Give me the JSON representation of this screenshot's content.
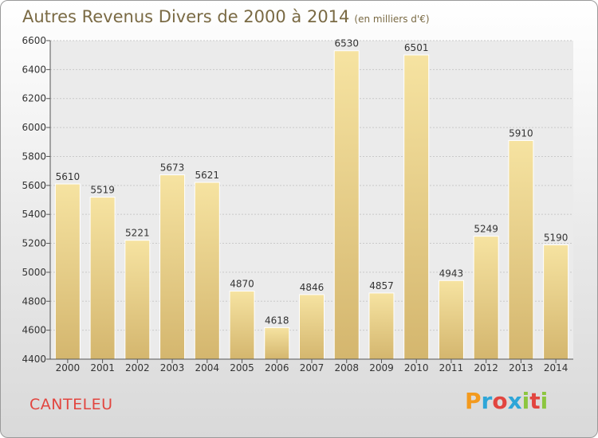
{
  "header": {
    "title": "Autres Revenus Divers de 2000 à 2014",
    "subtitle": "(en milliers d'€)"
  },
  "footer": {
    "town": "CANTELEU",
    "brand": "Proxiti",
    "brand_colors": [
      "#f39a1e",
      "#2ea6d8",
      "#e2453f",
      "#2ea6d8",
      "#8cc63f",
      "#e2453f",
      "#8cc63f"
    ]
  },
  "colors": {
    "bar_light": "#f6e3a1",
    "bar_dark": "#d4b66e",
    "label": "#333333",
    "town": "#e2453f",
    "title": "#7a6a44"
  },
  "chart_data": {
    "type": "bar",
    "title": "Autres Revenus Divers de 2000 à 2014",
    "subtitle": "(en milliers d'€)",
    "categories": [
      "2000",
      "2001",
      "2002",
      "2003",
      "2004",
      "2005",
      "2006",
      "2007",
      "2008",
      "2009",
      "2010",
      "2011",
      "2012",
      "2013",
      "2014"
    ],
    "values": [
      5610,
      5519,
      5221,
      5673,
      5621,
      4870,
      4618,
      4846,
      6530,
      4857,
      6501,
      4943,
      5249,
      5910,
      5190
    ],
    "ylim": [
      4400,
      6600
    ],
    "yticks": [
      4400,
      4600,
      4800,
      5000,
      5200,
      5400,
      5600,
      5800,
      6000,
      6200,
      6400,
      6600
    ],
    "grid": true,
    "legend": "none"
  }
}
